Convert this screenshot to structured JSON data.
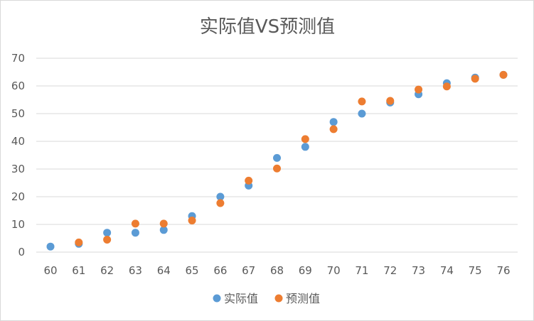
{
  "chart_data": {
    "type": "scatter",
    "title": "实际值VS预测值",
    "xlabel": "",
    "ylabel": "",
    "xlim": [
      60,
      76
    ],
    "ylim": [
      0,
      70
    ],
    "x_ticks": [
      60,
      61,
      62,
      63,
      64,
      65,
      66,
      67,
      68,
      69,
      70,
      71,
      72,
      73,
      74,
      75,
      76
    ],
    "y_ticks": [
      0,
      10,
      20,
      30,
      40,
      50,
      60,
      70
    ],
    "grid": true,
    "legend_position": "bottom",
    "series": [
      {
        "name": "实际值",
        "color": "#5B9BD5",
        "x": [
          60,
          61,
          62,
          63,
          64,
          65,
          66,
          67,
          68,
          69,
          70,
          71,
          72,
          73,
          74,
          75,
          76
        ],
        "y": [
          2,
          3,
          7,
          7,
          8,
          13,
          20,
          24,
          34,
          38,
          47,
          50,
          54,
          57,
          61,
          63,
          64
        ]
      },
      {
        "name": "预测值",
        "color": "#ED7D31",
        "x": [
          61,
          62,
          63,
          64,
          65,
          66,
          67,
          68,
          69,
          70,
          71,
          72,
          73,
          74,
          75,
          76
        ],
        "y": [
          3.5,
          4.5,
          10.3,
          10.3,
          11.4,
          17.7,
          25.8,
          30.2,
          40.8,
          44.4,
          54.4,
          54.6,
          58.7,
          59.8,
          62.6,
          64.0
        ]
      }
    ]
  }
}
